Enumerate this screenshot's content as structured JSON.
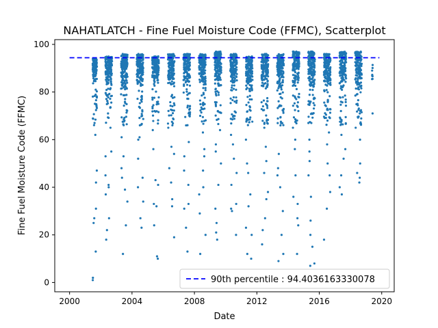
{
  "chart_data": {
    "type": "scatter",
    "title": "NAHATLATCH - Fine Fuel Moisture Code (FFMC), Scatterplot",
    "xlabel": "Date",
    "ylabel": "Fine Fuel Moisture Code (FFMC)",
    "xlim": [
      1999.05,
      2020.8
    ],
    "ylim": [
      -3.9,
      102
    ],
    "xticks": [
      2000,
      2004,
      2008,
      2012,
      2016,
      2020
    ],
    "yticks": [
      0,
      20,
      40,
      60,
      80,
      100
    ],
    "xtick_labels": [
      "2000",
      "2004",
      "2008",
      "2012",
      "2016",
      "2020"
    ],
    "ytick_labels": [
      "0",
      "20",
      "40",
      "60",
      "80",
      "100"
    ],
    "grid": false,
    "legend_position": "lower right",
    "point_color": "#1f77b4",
    "reference_line": {
      "label": "90th percentile : 94.4036163330078",
      "value": 94.4036163330078,
      "x_range": [
        2000.0,
        2019.85
      ],
      "color": "#0000ff",
      "style": "dashed"
    },
    "season_clusters": [
      {
        "year": 2001,
        "x_start": 2001.48,
        "x_end": 2001.75,
        "upper_band": [
          84,
          94
        ],
        "sparse_lows": [
          62,
          47,
          42,
          31,
          27,
          25,
          13,
          2,
          1
        ]
      },
      {
        "year": 2002,
        "x_start": 2002.3,
        "x_end": 2002.72,
        "upper_band": [
          80,
          95
        ],
        "sparse_lows": [
          65,
          55,
          53,
          45,
          41,
          40,
          37,
          27,
          22,
          18
        ]
      },
      {
        "year": 2003,
        "x_start": 2003.3,
        "x_end": 2003.72,
        "upper_band": [
          80,
          96
        ],
        "sparse_lows": [
          68,
          61,
          53,
          48,
          44,
          39,
          34,
          24,
          12
        ]
      },
      {
        "year": 2004,
        "x_start": 2004.3,
        "x_end": 2004.72,
        "upper_band": [
          82,
          96
        ],
        "sparse_lows": [
          70,
          61,
          60,
          52,
          44,
          40,
          34,
          27,
          23
        ]
      },
      {
        "year": 2005,
        "x_start": 2005.3,
        "x_end": 2005.72,
        "upper_band": [
          82,
          95
        ],
        "sparse_lows": [
          72,
          64,
          56,
          43,
          41,
          33,
          32,
          24,
          11,
          10
        ]
      },
      {
        "year": 2006,
        "x_start": 2006.3,
        "x_end": 2006.72,
        "upper_band": [
          82,
          96
        ],
        "sparse_lows": [
          74,
          65,
          57,
          54,
          48,
          42,
          35,
          32,
          19
        ]
      },
      {
        "year": 2007,
        "x_start": 2007.3,
        "x_end": 2007.72,
        "upper_band": [
          82,
          96
        ],
        "sparse_lows": [
          73,
          66,
          59,
          53,
          47,
          41,
          33,
          31,
          23,
          13
        ]
      },
      {
        "year": 2008,
        "x_start": 2008.3,
        "x_end": 2008.72,
        "upper_band": [
          80,
          96
        ],
        "sparse_lows": [
          70,
          63,
          56,
          53,
          47,
          40,
          37,
          29,
          20,
          12
        ]
      },
      {
        "year": 2009,
        "x_start": 2009.3,
        "x_end": 2009.72,
        "upper_band": [
          82,
          97
        ],
        "sparse_lows": [
          72,
          64,
          58,
          55,
          50,
          41,
          31,
          25,
          21,
          18
        ]
      },
      {
        "year": 2010,
        "x_start": 2010.3,
        "x_end": 2010.72,
        "upper_band": [
          82,
          96
        ],
        "sparse_lows": [
          70,
          62,
          58,
          52,
          46,
          41,
          33,
          31,
          30,
          20
        ]
      },
      {
        "year": 2011,
        "x_start": 2011.3,
        "x_end": 2011.72,
        "upper_band": [
          78,
          95
        ],
        "sparse_lows": [
          68,
          60,
          50,
          46,
          37,
          32,
          23,
          20,
          12,
          10
        ]
      },
      {
        "year": 2012,
        "x_start": 2012.3,
        "x_end": 2012.72,
        "upper_band": [
          80,
          96
        ],
        "sparse_lows": [
          74,
          65,
          57,
          51,
          46,
          38,
          35,
          27,
          22,
          16
        ]
      },
      {
        "year": 2013,
        "x_start": 2013.3,
        "x_end": 2013.72,
        "upper_band": [
          80,
          96
        ],
        "sparse_lows": [
          72,
          66,
          54,
          48,
          45,
          40,
          30,
          20,
          12,
          9
        ]
      },
      {
        "year": 2014,
        "x_start": 2014.3,
        "x_end": 2014.72,
        "upper_band": [
          82,
          97
        ],
        "sparse_lows": [
          72,
          65,
          60,
          56,
          45,
          36,
          33,
          27,
          24,
          12
        ]
      },
      {
        "year": 2015,
        "x_start": 2015.3,
        "x_end": 2015.72,
        "upper_band": [
          80,
          97
        ],
        "sparse_lows": [
          71,
          67,
          60,
          55,
          51,
          45,
          36,
          26,
          20,
          15,
          8,
          7
        ]
      },
      {
        "year": 2016,
        "x_start": 2016.3,
        "x_end": 2016.72,
        "upper_band": [
          80,
          96
        ],
        "sparse_lows": [
          73,
          68,
          63,
          58,
          50,
          45,
          38,
          31,
          18
        ]
      },
      {
        "year": 2017,
        "x_start": 2017.3,
        "x_end": 2017.72,
        "upper_band": [
          80,
          97
        ],
        "sparse_lows": [
          72,
          62,
          56,
          52,
          45,
          40,
          37
        ]
      },
      {
        "year": 2018,
        "x_start": 2018.3,
        "x_end": 2018.72,
        "upper_band": [
          80,
          97
        ],
        "sparse_lows": [
          71,
          65,
          60,
          50,
          46,
          44,
          42
        ]
      },
      {
        "year": 2019,
        "x_start": 2019.38,
        "x_end": 2019.42,
        "upper_band": [
          83,
          92
        ],
        "sparse_lows": [
          71
        ]
      }
    ]
  }
}
